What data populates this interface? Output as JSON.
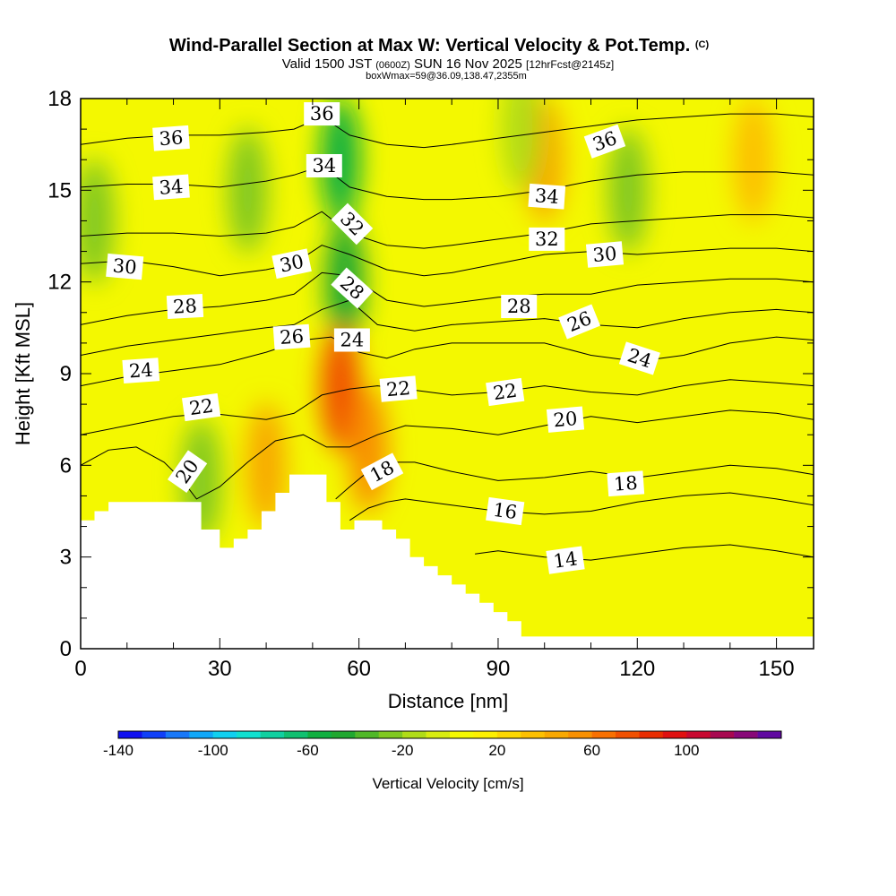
{
  "chart_data": {
    "type": "heatmap",
    "title": "Wind-Parallel Section at Max W: Vertical Velocity & Pot.Temp.",
    "title_mark": "(C)",
    "subtitle_parts": [
      "Valid 1500 JST",
      "(0600Z)",
      "SUN 16 Nov 2025",
      "[12hrFcst@2145z]"
    ],
    "subtitle2": "boxWmax=59@36.09,138.47,2355m",
    "xlabel": "Distance [nm]",
    "ylabel": "Height [Kft MSL]",
    "xlim": [
      0,
      158
    ],
    "ylim": [
      0,
      18
    ],
    "x_ticks": [
      0,
      30,
      60,
      90,
      120,
      150
    ],
    "y_ticks": [
      0,
      3,
      6,
      9,
      12,
      15,
      18
    ],
    "grid": false,
    "colorbar": {
      "label": "Vertical Velocity [cm/s]",
      "range": [
        -140,
        140
      ],
      "step": 10,
      "tick_labels": [
        "-140",
        "-100",
        "-60",
        "-20",
        "20",
        "60",
        "100"
      ],
      "tick_values": [
        -140,
        -100,
        -60,
        -20,
        20,
        60,
        100
      ],
      "colors": [
        "#1010f0",
        "#1040f8",
        "#1878f8",
        "#10a8f8",
        "#10d0f0",
        "#10e0d0",
        "#10d0a0",
        "#10c070",
        "#10b040",
        "#20a830",
        "#50b828",
        "#80c820",
        "#b0dc18",
        "#d8ec10",
        "#f4f800",
        "#fcf000",
        "#fcd800",
        "#fcc000",
        "#f8a800",
        "#f89000",
        "#f87000",
        "#f05000",
        "#e82c00",
        "#e01010",
        "#c80830",
        "#a80850",
        "#880878",
        "#6008a0"
      ]
    },
    "terrain_profile": {
      "x": [
        0,
        3,
        3,
        6,
        6,
        9,
        9,
        26,
        26,
        29,
        29,
        30,
        30,
        33,
        33,
        36,
        36,
        39,
        39,
        42,
        42,
        45,
        45,
        51,
        51,
        53,
        53,
        56,
        56,
        59,
        59,
        62,
        62,
        65,
        65,
        68,
        68,
        71,
        71,
        74,
        74,
        77,
        77,
        80,
        80,
        83,
        83,
        86,
        86,
        89,
        89,
        92,
        92,
        95,
        95,
        158
      ],
      "height": [
        4.2,
        4.2,
        4.5,
        4.5,
        4.8,
        4.8,
        4.8,
        4.8,
        3.9,
        3.9,
        3.9,
        3.9,
        3.3,
        3.3,
        3.6,
        3.6,
        3.9,
        3.9,
        4.5,
        4.5,
        5.1,
        5.1,
        5.7,
        5.7,
        5.7,
        5.7,
        4.8,
        4.8,
        3.9,
        3.9,
        4.2,
        4.2,
        4.2,
        4.2,
        3.9,
        3.9,
        3.6,
        3.6,
        3.0,
        3.0,
        2.7,
        2.7,
        2.4,
        2.4,
        2.1,
        2.1,
        1.8,
        1.8,
        1.5,
        1.5,
        1.2,
        1.2,
        0.9,
        0.9,
        0.4,
        0.4
      ]
    },
    "vertical_velocity_features": [
      {
        "x": 3,
        "height": 14,
        "w": -25
      },
      {
        "x": 36,
        "height": 15,
        "w": -25
      },
      {
        "x": 56,
        "height": 16,
        "w": -55
      },
      {
        "x": 57,
        "height": 12,
        "w": -45
      },
      {
        "x": 56,
        "height": 8.5,
        "w": 70
      },
      {
        "x": 62,
        "height": 6.5,
        "w": 50
      },
      {
        "x": 26,
        "height": 5.5,
        "w": -30
      },
      {
        "x": 40,
        "height": 6,
        "w": 40
      },
      {
        "x": 100,
        "height": 16,
        "w": 40
      },
      {
        "x": 118,
        "height": 15,
        "w": -30
      },
      {
        "x": 95,
        "height": 17,
        "w": -20
      },
      {
        "x": 145,
        "height": 16,
        "w": 30
      }
    ],
    "isentropes": [
      {
        "label": "14",
        "x": [
          85,
          90,
          100,
          110,
          120,
          130,
          140,
          150,
          158
        ],
        "height": [
          3.1,
          3.2,
          3.0,
          2.9,
          3.1,
          3.3,
          3.4,
          3.2,
          3.0
        ]
      },
      {
        "label": "16",
        "x": [
          58,
          62,
          66,
          70,
          80,
          90,
          100,
          110,
          120,
          130,
          140,
          150,
          158
        ],
        "height": [
          4.2,
          4.6,
          4.8,
          4.9,
          4.7,
          4.5,
          4.4,
          4.5,
          4.8,
          5.0,
          5.1,
          4.9,
          4.7
        ]
      },
      {
        "label": "18",
        "x": [
          55,
          58,
          62,
          66,
          72,
          80,
          90,
          100,
          110,
          120,
          130,
          140,
          150,
          158
        ],
        "height": [
          4.9,
          5.3,
          5.8,
          6.1,
          6.1,
          5.8,
          5.5,
          5.6,
          5.8,
          5.6,
          5.8,
          6.0,
          5.9,
          5.7
        ]
      },
      {
        "label": "20",
        "x": [
          0,
          6,
          12,
          18,
          22,
          25,
          30,
          36,
          42,
          48,
          53,
          58,
          64,
          70,
          80,
          90,
          100,
          110,
          120,
          130,
          140,
          150,
          158
        ],
        "height": [
          6.0,
          6.5,
          6.6,
          6.1,
          5.5,
          4.9,
          5.3,
          6.1,
          6.8,
          7.0,
          6.6,
          6.6,
          7.0,
          7.3,
          7.2,
          7.0,
          7.3,
          7.6,
          7.4,
          7.6,
          7.8,
          7.7,
          7.5
        ]
      },
      {
        "label": "22",
        "x": [
          0,
          10,
          20,
          28,
          34,
          40,
          46,
          52,
          58,
          64,
          70,
          80,
          90,
          100,
          110,
          120,
          130,
          140,
          150,
          158
        ],
        "height": [
          7.0,
          7.3,
          7.6,
          7.7,
          7.6,
          7.5,
          7.7,
          8.3,
          8.5,
          8.6,
          8.5,
          8.3,
          8.4,
          8.6,
          8.4,
          8.3,
          8.6,
          8.8,
          8.7,
          8.6
        ]
      },
      {
        "label": "24",
        "x": [
          0,
          10,
          20,
          30,
          40,
          48,
          54,
          60,
          66,
          72,
          80,
          90,
          100,
          110,
          120,
          130,
          140,
          150,
          158
        ],
        "height": [
          8.6,
          8.9,
          9.1,
          9.3,
          9.7,
          10.1,
          10.2,
          9.7,
          9.5,
          9.8,
          10.0,
          10.0,
          10.0,
          9.6,
          9.4,
          9.6,
          10.0,
          10.2,
          10.1
        ]
      },
      {
        "label": "26",
        "x": [
          0,
          10,
          20,
          30,
          40,
          46,
          52,
          58,
          64,
          72,
          80,
          90,
          100,
          110,
          120,
          130,
          140,
          150,
          158
        ],
        "height": [
          9.6,
          9.9,
          10.1,
          10.3,
          10.5,
          10.6,
          11.1,
          11.4,
          10.6,
          10.4,
          10.6,
          10.7,
          10.8,
          10.6,
          10.5,
          10.8,
          11.0,
          11.1,
          11.0
        ]
      },
      {
        "label": "28",
        "x": [
          0,
          10,
          20,
          30,
          40,
          46,
          52,
          58,
          66,
          74,
          80,
          90,
          100,
          110,
          120,
          130,
          140,
          150,
          158
        ],
        "height": [
          10.6,
          10.9,
          11.1,
          11.2,
          11.4,
          11.6,
          12.3,
          12.2,
          11.4,
          11.2,
          11.3,
          11.5,
          11.6,
          11.6,
          11.9,
          12.0,
          12.1,
          12.1,
          12.0
        ]
      },
      {
        "label": "30",
        "x": [
          0,
          10,
          20,
          30,
          40,
          46,
          52,
          58,
          66,
          74,
          80,
          90,
          100,
          110,
          120,
          130,
          140,
          150,
          158
        ],
        "height": [
          12.6,
          12.7,
          12.5,
          12.2,
          12.4,
          12.6,
          13.2,
          12.9,
          12.4,
          12.2,
          12.3,
          12.6,
          12.9,
          13.0,
          12.9,
          13.0,
          13.1,
          13.1,
          13.0
        ]
      },
      {
        "label": "32",
        "x": [
          0,
          10,
          20,
          30,
          40,
          46,
          52,
          58,
          66,
          74,
          80,
          90,
          100,
          110,
          120,
          130,
          140,
          150,
          158
        ],
        "height": [
          13.5,
          13.6,
          13.6,
          13.5,
          13.6,
          13.8,
          14.3,
          13.6,
          13.2,
          13.1,
          13.2,
          13.4,
          13.6,
          13.9,
          14.0,
          14.1,
          14.2,
          14.2,
          14.1
        ]
      },
      {
        "label": "34",
        "x": [
          0,
          10,
          20,
          30,
          40,
          46,
          52,
          58,
          66,
          74,
          80,
          90,
          100,
          110,
          120,
          130,
          140,
          150,
          158
        ],
        "height": [
          15.1,
          15.2,
          15.2,
          15.1,
          15.3,
          15.5,
          15.8,
          15.1,
          14.8,
          14.7,
          14.7,
          14.8,
          15.0,
          15.3,
          15.5,
          15.6,
          15.6,
          15.6,
          15.5
        ]
      },
      {
        "label": "36",
        "x": [
          0,
          10,
          20,
          30,
          40,
          46,
          52,
          58,
          66,
          74,
          80,
          90,
          100,
          110,
          120,
          130,
          140,
          150,
          158
        ],
        "height": [
          16.5,
          16.7,
          16.8,
          16.8,
          16.9,
          17.0,
          17.4,
          16.8,
          16.5,
          16.4,
          16.5,
          16.7,
          16.9,
          17.1,
          17.3,
          17.4,
          17.5,
          17.5,
          17.4
        ]
      }
    ],
    "contour_labels": [
      {
        "text": "36",
        "x": 19.5,
        "height": 16.7,
        "angle": -4
      },
      {
        "text": "34",
        "x": 19.5,
        "height": 15.1,
        "angle": -4
      },
      {
        "text": "30",
        "x": 9.5,
        "height": 12.5,
        "angle": 5
      },
      {
        "text": "28",
        "x": 22.5,
        "height": 11.2,
        "angle": -3
      },
      {
        "text": "24",
        "x": 13,
        "height": 9.1,
        "angle": -4
      },
      {
        "text": "22",
        "x": 26,
        "height": 7.9,
        "angle": -8
      },
      {
        "text": "20",
        "x": 23,
        "height": 5.8,
        "angle": -55
      },
      {
        "text": "36",
        "x": 52,
        "height": 17.5,
        "angle": 0
      },
      {
        "text": "34",
        "x": 52.5,
        "height": 15.8,
        "angle": 0
      },
      {
        "text": "32",
        "x": 58.5,
        "height": 13.9,
        "angle": 45
      },
      {
        "text": "30",
        "x": 45.5,
        "height": 12.6,
        "angle": -12
      },
      {
        "text": "28",
        "x": 58.5,
        "height": 11.8,
        "angle": 42
      },
      {
        "text": "26",
        "x": 45.5,
        "height": 10.2,
        "angle": -4
      },
      {
        "text": "24",
        "x": 58.5,
        "height": 10.1,
        "angle": 0
      },
      {
        "text": "22",
        "x": 68.5,
        "height": 8.5,
        "angle": -5
      },
      {
        "text": "18",
        "x": 65,
        "height": 5.8,
        "angle": -28
      },
      {
        "text": "22",
        "x": 91.5,
        "height": 8.4,
        "angle": -8
      },
      {
        "text": "20",
        "x": 104.5,
        "height": 7.5,
        "angle": -5
      },
      {
        "text": "16",
        "x": 91.5,
        "height": 4.5,
        "angle": 8
      },
      {
        "text": "14",
        "x": 104.5,
        "height": 2.9,
        "angle": -8
      },
      {
        "text": "18",
        "x": 117.5,
        "height": 5.4,
        "angle": -4
      },
      {
        "text": "24",
        "x": 120.5,
        "height": 9.5,
        "angle": 18
      },
      {
        "text": "26",
        "x": 107.5,
        "height": 10.7,
        "angle": -22
      },
      {
        "text": "28",
        "x": 94.5,
        "height": 11.2,
        "angle": 0
      },
      {
        "text": "32",
        "x": 100.5,
        "height": 13.4,
        "angle": 0
      },
      {
        "text": "30",
        "x": 113,
        "height": 12.9,
        "angle": -5
      },
      {
        "text": "34",
        "x": 100.5,
        "height": 14.8,
        "angle": 4
      },
      {
        "text": "36",
        "x": 113,
        "height": 16.6,
        "angle": -20
      }
    ]
  }
}
